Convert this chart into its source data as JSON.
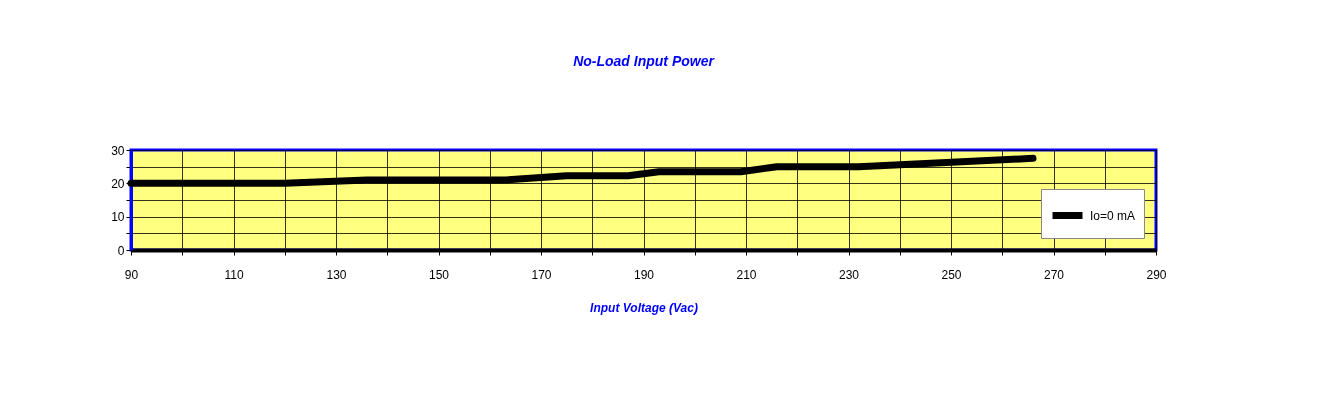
{
  "chart_data": {
    "type": "line",
    "title": "No-Load Input Power",
    "xlabel": "Input Voltage (Vac)",
    "x": [
      90,
      120,
      136,
      163,
      175,
      187,
      193,
      209,
      216,
      232,
      266
    ],
    "series": [
      {
        "name": "Io=0 mA",
        "color": "#000000",
        "values": [
          20,
          20,
          21,
          21,
          22.3,
          22.3,
          23.5,
          23.5,
          25,
          25,
          27.5
        ]
      }
    ],
    "xlim": [
      90,
      290
    ],
    "xticks": [
      90,
      {
        "value": 100,
        "label": null
      },
      110,
      {
        "value": 120,
        "label": null
      },
      130,
      {
        "value": 140,
        "label": null
      },
      150,
      {
        "value": 160,
        "label": null
      },
      170,
      {
        "value": 180,
        "label": null
      },
      190,
      {
        "value": 200,
        "label": null
      },
      210,
      {
        "value": 220,
        "label": null
      },
      230,
      {
        "value": 240,
        "label": null
      },
      250,
      {
        "value": 260,
        "label": null
      },
      270,
      {
        "value": 280,
        "label": null
      },
      290
    ],
    "ylim": [
      0,
      30
    ],
    "yticks": [
      0,
      {
        "value": 5,
        "label": null
      },
      10,
      {
        "value": 15,
        "label": null
      },
      20,
      {
        "value": 25,
        "label": null
      },
      30
    ],
    "grid": true,
    "legend": "bottom right",
    "line_style": "solid"
  }
}
